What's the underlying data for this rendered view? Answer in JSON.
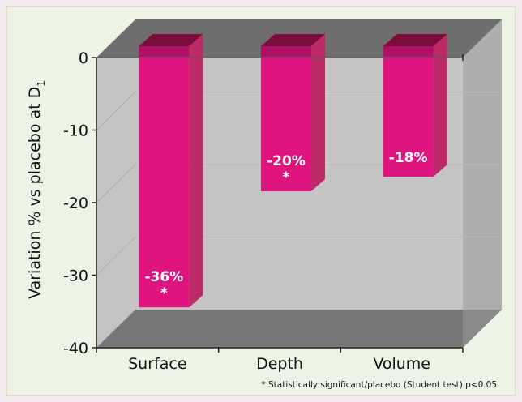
{
  "chart_data": {
    "type": "bar",
    "categories": [
      "Surface",
      "Depth",
      "Volume"
    ],
    "values": [
      -36,
      -20,
      -18
    ],
    "data_labels": [
      "-36%",
      "-20%",
      "-18%"
    ],
    "significant": [
      true,
      true,
      false
    ],
    "significance_marker": "*",
    "ylabel": "Variation % vs placebo at D",
    "ylabel_subscript": "1",
    "ylim": [
      -40,
      0
    ],
    "yticks": [
      0,
      -10,
      -20,
      -30,
      -40
    ],
    "grid": true,
    "footnote": "* Statistically significant/placebo (Student test) p<0.05",
    "colors": {
      "bar_front": "#e0147f",
      "bar_side": "#bc2a68",
      "bar_top": "#7a0e3a",
      "back_wall": "#c4c4c4",
      "floor": "#777777",
      "ceiling": "#6e6e6e",
      "side_wall": "#9a9a9a",
      "background": "#eef4e4"
    }
  }
}
